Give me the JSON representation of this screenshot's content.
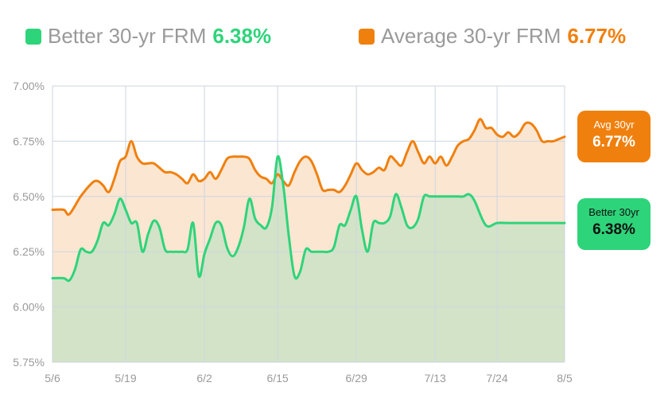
{
  "legend": {
    "better": {
      "label": "Better 30-yr FRM",
      "value": "6.38%",
      "color": "#2ed47a"
    },
    "average": {
      "label": "Average 30-yr FRM",
      "value": "6.77%",
      "color": "#f0800e"
    }
  },
  "badges": {
    "average": {
      "label": "Avg 30yr",
      "value": "6.77%",
      "color": "#f0800e"
    },
    "better": {
      "label": "Better 30yr",
      "value": "6.38%",
      "color": "#2ed47a"
    }
  },
  "chart_data": {
    "type": "area",
    "title": "",
    "xlabel": "",
    "ylabel": "",
    "ylim": [
      5.75,
      7.0
    ],
    "yticks": [
      5.75,
      6.0,
      6.25,
      6.5,
      6.75,
      7.0
    ],
    "ytick_labels": [
      "5.75%",
      "6.00%",
      "6.25%",
      "6.50%",
      "6.75%",
      "7.00%"
    ],
    "xlim": [
      "2024-05-06",
      "2024-08-05"
    ],
    "xticks": [
      "2024-05-06",
      "2024-05-19",
      "2024-06-02",
      "2024-06-15",
      "2024-06-29",
      "2024-07-13",
      "2024-07-24",
      "2024-08-05"
    ],
    "xtick_labels": [
      "5/6",
      "5/19",
      "6/2",
      "6/15",
      "6/29",
      "7/13",
      "7/24",
      "8/5"
    ],
    "grid": true,
    "series": [
      {
        "name": "Average 30-yr FRM",
        "color": "#f0800e",
        "fill": "#fbe6d2",
        "x": [
          "2024-05-06",
          "2024-05-08",
          "2024-05-09",
          "2024-05-11",
          "2024-05-13",
          "2024-05-14",
          "2024-05-15",
          "2024-05-16",
          "2024-05-17",
          "2024-05-18",
          "2024-05-19",
          "2024-05-20",
          "2024-05-21",
          "2024-05-22",
          "2024-05-23",
          "2024-05-24",
          "2024-05-25",
          "2024-05-26",
          "2024-05-27",
          "2024-05-28",
          "2024-05-29",
          "2024-05-30",
          "2024-05-31",
          "2024-06-01",
          "2024-06-02",
          "2024-06-03",
          "2024-06-04",
          "2024-06-05",
          "2024-06-06",
          "2024-06-07",
          "2024-06-08",
          "2024-06-09",
          "2024-06-10",
          "2024-06-11",
          "2024-06-12",
          "2024-06-13",
          "2024-06-14",
          "2024-06-15",
          "2024-06-16",
          "2024-06-17",
          "2024-06-18",
          "2024-06-19",
          "2024-06-20",
          "2024-06-21",
          "2024-06-22",
          "2024-06-23",
          "2024-06-24",
          "2024-06-25",
          "2024-06-26",
          "2024-06-27",
          "2024-06-28",
          "2024-06-29",
          "2024-06-30",
          "2024-07-01",
          "2024-07-02",
          "2024-07-03",
          "2024-07-04",
          "2024-07-05",
          "2024-07-06",
          "2024-07-07",
          "2024-07-08",
          "2024-07-09",
          "2024-07-10",
          "2024-07-11",
          "2024-07-12",
          "2024-07-13",
          "2024-07-14",
          "2024-07-15",
          "2024-07-16",
          "2024-07-17",
          "2024-07-18",
          "2024-07-19",
          "2024-07-20",
          "2024-07-21",
          "2024-07-22",
          "2024-07-23",
          "2024-07-24",
          "2024-07-25",
          "2024-07-26",
          "2024-07-27",
          "2024-07-28",
          "2024-07-29",
          "2024-07-30",
          "2024-07-31",
          "2024-08-01",
          "2024-08-02",
          "2024-08-03",
          "2024-08-04",
          "2024-08-05"
        ],
        "values": [
          6.44,
          6.44,
          6.42,
          6.5,
          6.56,
          6.57,
          6.55,
          6.52,
          6.58,
          6.66,
          6.68,
          6.75,
          6.68,
          6.65,
          6.65,
          6.65,
          6.63,
          6.61,
          6.61,
          6.6,
          6.58,
          6.56,
          6.6,
          6.57,
          6.58,
          6.61,
          6.58,
          6.62,
          6.67,
          6.68,
          6.68,
          6.68,
          6.67,
          6.62,
          6.59,
          6.58,
          6.56,
          6.6,
          6.57,
          6.55,
          6.61,
          6.66,
          6.68,
          6.66,
          6.6,
          6.53,
          6.53,
          6.53,
          6.52,
          6.55,
          6.6,
          6.65,
          6.62,
          6.6,
          6.61,
          6.63,
          6.62,
          6.68,
          6.66,
          6.64,
          6.7,
          6.75,
          6.7,
          6.65,
          6.68,
          6.65,
          6.68,
          6.64,
          6.68,
          6.73,
          6.75,
          6.76,
          6.8,
          6.85,
          6.81,
          6.81,
          6.78,
          6.77,
          6.79,
          6.77,
          6.79,
          6.83,
          6.83,
          6.8,
          6.75,
          6.75,
          6.75,
          6.76,
          6.77
        ]
      },
      {
        "name": "Better 30-yr FRM",
        "color": "#2ed47a",
        "fill": "#d3e3c7",
        "x": [
          "2024-05-06",
          "2024-05-08",
          "2024-05-09",
          "2024-05-10",
          "2024-05-11",
          "2024-05-12",
          "2024-05-13",
          "2024-05-14",
          "2024-05-15",
          "2024-05-16",
          "2024-05-17",
          "2024-05-18",
          "2024-05-19",
          "2024-05-20",
          "2024-05-21",
          "2024-05-22",
          "2024-05-23",
          "2024-05-24",
          "2024-05-25",
          "2024-05-26",
          "2024-05-27",
          "2024-05-28",
          "2024-05-29",
          "2024-05-30",
          "2024-05-31",
          "2024-06-01",
          "2024-06-02",
          "2024-06-03",
          "2024-06-04",
          "2024-06-05",
          "2024-06-06",
          "2024-06-07",
          "2024-06-08",
          "2024-06-09",
          "2024-06-10",
          "2024-06-11",
          "2024-06-12",
          "2024-06-13",
          "2024-06-14",
          "2024-06-15",
          "2024-06-16",
          "2024-06-17",
          "2024-06-18",
          "2024-06-19",
          "2024-06-20",
          "2024-06-21",
          "2024-06-22",
          "2024-06-23",
          "2024-06-24",
          "2024-06-25",
          "2024-06-26",
          "2024-06-27",
          "2024-06-28",
          "2024-06-29",
          "2024-06-30",
          "2024-07-01",
          "2024-07-02",
          "2024-07-03",
          "2024-07-04",
          "2024-07-05",
          "2024-07-06",
          "2024-07-07",
          "2024-07-08",
          "2024-07-09",
          "2024-07-10",
          "2024-07-11",
          "2024-07-12",
          "2024-07-13",
          "2024-07-14",
          "2024-07-15",
          "2024-07-16",
          "2024-07-17",
          "2024-07-18",
          "2024-07-19",
          "2024-07-20",
          "2024-07-22",
          "2024-07-24",
          "2024-07-26",
          "2024-07-28",
          "2024-07-29",
          "2024-07-30",
          "2024-07-31",
          "2024-08-01",
          "2024-08-02",
          "2024-08-03",
          "2024-08-04",
          "2024-08-05"
        ],
        "values": [
          6.13,
          6.13,
          6.12,
          6.17,
          6.26,
          6.25,
          6.25,
          6.3,
          6.38,
          6.37,
          6.42,
          6.49,
          6.44,
          6.38,
          6.38,
          6.25,
          6.33,
          6.39,
          6.36,
          6.26,
          6.25,
          6.25,
          6.25,
          6.26,
          6.38,
          6.14,
          6.24,
          6.31,
          6.38,
          6.37,
          6.27,
          6.23,
          6.27,
          6.36,
          6.49,
          6.4,
          6.37,
          6.36,
          6.45,
          6.68,
          6.55,
          6.32,
          6.14,
          6.16,
          6.26,
          6.25,
          6.25,
          6.25,
          6.25,
          6.27,
          6.37,
          6.37,
          6.44,
          6.5,
          6.35,
          6.25,
          6.38,
          6.38,
          6.38,
          6.41,
          6.51,
          6.45,
          6.37,
          6.36,
          6.4,
          6.5,
          6.5,
          6.5,
          6.5,
          6.5,
          6.5,
          6.5,
          6.5,
          6.51,
          6.48,
          6.37,
          6.38,
          6.38,
          6.38,
          6.38,
          6.38,
          6.38,
          6.38,
          6.38,
          6.38,
          6.38,
          6.38
        ]
      }
    ]
  }
}
